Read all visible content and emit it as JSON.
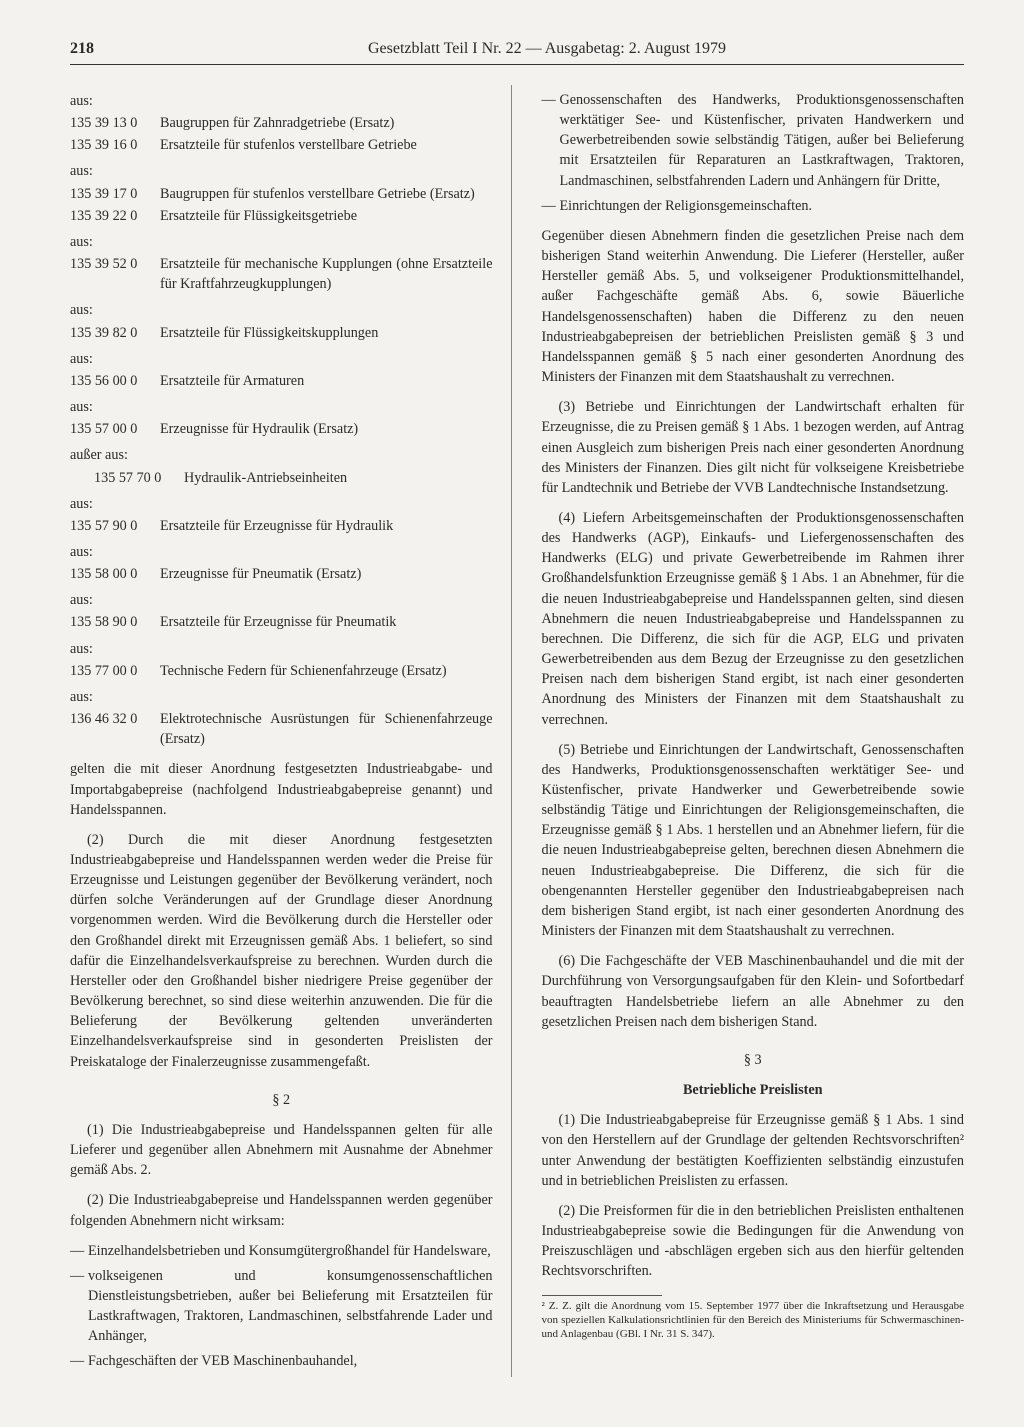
{
  "header": {
    "page_number": "218",
    "title": "Gesetzblatt Teil I Nr. 22 — Ausgabetag: 2. August 1979"
  },
  "left": {
    "items": [
      {
        "aus": "aus:"
      },
      {
        "code": "135 39 13 0",
        "desc": "Baugruppen für Zahnradgetriebe (Ersatz)"
      },
      {
        "code": "135 39 16 0",
        "desc": "Ersatzteile für stufenlos verstellbare Getriebe"
      },
      {
        "aus": "aus:"
      },
      {
        "code": "135 39 17 0",
        "desc": "Baugruppen für stufenlos verstellbare Getriebe (Ersatz)"
      },
      {
        "code": "135 39 22 0",
        "desc": "Ersatzteile für Flüssigkeitsgetriebe"
      },
      {
        "aus": "aus:"
      },
      {
        "code": "135 39 52 0",
        "desc": "Ersatzteile für mechanische Kupplungen (ohne Ersatzteile für Kraftfahrzeugkupplungen)"
      },
      {
        "aus": "aus:"
      },
      {
        "code": "135 39 82 0",
        "desc": "Ersatzteile für Flüssigkeitskupplungen"
      },
      {
        "aus": "aus:"
      },
      {
        "code": "135 56 00 0",
        "desc": "Ersatzteile für Armaturen"
      },
      {
        "aus": "aus:"
      },
      {
        "code": "135 57 00 0",
        "desc": "Erzeugnisse für Hydraulik (Ersatz)"
      },
      {
        "aus": "außer aus:"
      },
      {
        "indent": true,
        "code": "135 57 70 0",
        "desc": "Hydraulik-Antriebseinheiten"
      },
      {
        "aus": "aus:"
      },
      {
        "code": "135 57 90 0",
        "desc": "Ersatzteile für Erzeugnisse für Hydraulik"
      },
      {
        "aus": "aus:"
      },
      {
        "code": "135 58 00 0",
        "desc": "Erzeugnisse für Pneumatik (Ersatz)"
      },
      {
        "aus": "aus:"
      },
      {
        "code": "135 58 90 0",
        "desc": "Ersatzteile für Erzeugnisse für Pneumatik"
      },
      {
        "aus": "aus:"
      },
      {
        "code": "135 77 00 0",
        "desc": "Technische Federn für Schienenfahrzeuge (Ersatz)"
      },
      {
        "aus": "aus:"
      },
      {
        "code": "136 46 32 0",
        "desc": "Elektrotechnische Ausrüstungen für Schienenfahrzeuge (Ersatz)"
      }
    ],
    "para_after_list": "gelten die mit dieser Anordnung festgesetzten Industrieabgabe- und Importabgabepreise (nachfolgend Industrieabgabepreise genannt) und Handelsspannen.",
    "para2": "(2) Durch die mit dieser Anordnung festgesetzten Industrieabgabepreise und Handelsspannen werden weder die Preise für Erzeugnisse und Leistungen gegenüber der Bevölkerung verändert, noch dürfen solche Veränderungen auf der Grundlage dieser Anordnung vorgenommen werden. Wird die Bevölkerung durch die Hersteller oder den Großhandel direkt mit Erzeugnissen gemäß Abs. 1 beliefert, so sind dafür die Einzelhandelsverkaufspreise zu berechnen. Wurden durch die Hersteller oder den Großhandel bisher niedrigere Preise gegenüber der Bevölkerung berechnet, so sind diese weiterhin anzuwenden. Die für die Belieferung der Bevölkerung geltenden unveränderten Einzelhandelsverkaufspreise sind in gesonderten Preislisten der Preiskataloge der Finalerzeugnisse zusammengefaßt.",
    "section2": "§ 2",
    "s2p1": "(1) Die Industrieabgabepreise und Handelsspannen gelten für alle Lieferer und gegenüber allen Abnehmern mit Ausnahme der Abnehmer gemäß Abs. 2.",
    "s2p2": "(2) Die Industrieabgabepreise und Handelsspannen werden gegenüber folgenden Abnehmern nicht wirksam:",
    "s2_dashes": [
      "Einzelhandelsbetrieben und Konsumgütergroßhandel für Handelsware,",
      "volkseigenen und konsumgenossenschaftlichen Dienstleistungsbetrieben, außer bei Belieferung mit Ersatzteilen für Lastkraftwagen, Traktoren, Landmaschinen, selbstfahrende Lader und Anhänger,",
      "Fachgeschäften der VEB Maschinenbauhandel,"
    ]
  },
  "right": {
    "cont_dashes": [
      "Genossenschaften des Handwerks, Produktionsgenossenschaften werktätiger See- und Küstenfischer, privaten Handwerkern und Gewerbetreibenden sowie selbständig Tätigen, außer bei Belieferung mit Ersatzteilen für Reparaturen an Lastkraftwagen, Traktoren, Landmaschinen, selbstfahrenden Ladern und Anhängern für Dritte,",
      "Einrichtungen der Religionsgemeinschaften."
    ],
    "p_after": "Gegenüber diesen Abnehmern finden die gesetzlichen Preise nach dem bisherigen Stand weiterhin Anwendung. Die Lieferer (Hersteller, außer Hersteller gemäß Abs. 5, und volkseigener Produktionsmittelhandel, außer Fachgeschäfte gemäß Abs. 6, sowie Bäuerliche Handelsgenossenschaften) haben die Differenz zu den neuen Industrieabgabepreisen der betrieblichen Preislisten gemäß § 3 und Handelsspannen gemäß § 5 nach einer gesonderten Anordnung des Ministers der Finanzen mit dem Staatshaushalt zu verrechnen.",
    "p3": "(3) Betriebe und Einrichtungen der Landwirtschaft erhalten für Erzeugnisse, die zu Preisen gemäß § 1 Abs. 1 bezogen werden, auf Antrag einen Ausgleich zum bisherigen Preis nach einer gesonderten Anordnung des Ministers der Finanzen. Dies gilt nicht für volkseigene Kreisbetriebe für Landtechnik und Betriebe der VVB Landtechnische Instandsetzung.",
    "p4": "(4) Liefern Arbeitsgemeinschaften der Produktionsgenossenschaften des Handwerks (AGP), Einkaufs- und Liefergenossenschaften des Handwerks (ELG) und private Gewerbetreibende im Rahmen ihrer Großhandelsfunktion Erzeugnisse gemäß § 1 Abs. 1 an Abnehmer, für die die neuen Industrieabgabepreise und Handelsspannen gelten, sind diesen Abnehmern die neuen Industrieabgabepreise und Handelsspannen zu berechnen. Die Differenz, die sich für die AGP, ELG und privaten Gewerbetreibenden aus dem Bezug der Erzeugnisse zu den gesetzlichen Preisen nach dem bisherigen Stand ergibt, ist nach einer gesonderten Anordnung des Ministers der Finanzen mit dem Staatshaushalt zu verrechnen.",
    "p5": "(5) Betriebe und Einrichtungen der Landwirtschaft, Genossenschaften des Handwerks, Produktionsgenossenschaften werktätiger See- und Küstenfischer, private Handwerker und Gewerbetreibende sowie selbständig Tätige und Einrichtungen der Religionsgemeinschaften, die Erzeugnisse gemäß § 1 Abs. 1 herstellen und an Abnehmer liefern, für die die neuen Industrieabgabepreise gelten, berechnen diesen Abnehmern die neuen Industrieabgabepreise. Die Differenz, die sich für die obengenannten Hersteller gegenüber den Industrieabgabepreisen nach dem bisherigen Stand ergibt, ist nach einer gesonderten Anordnung des Ministers der Finanzen mit dem Staatshaushalt zu verrechnen.",
    "p6": "(6) Die Fachgeschäfte der VEB Maschinenbauhandel und die mit der Durchführung von Versorgungsaufgaben für den Klein- und Sofortbedarf beauftragten Handelsbetriebe liefern an alle Abnehmer zu den gesetzlichen Preisen nach dem bisherigen Stand.",
    "section3": "§ 3",
    "section3_title": "Betriebliche Preislisten",
    "s3p1": "(1) Die Industrieabgabepreise für Erzeugnisse gemäß § 1 Abs. 1 sind von den Herstellern auf der Grundlage der geltenden Rechtsvorschriften² unter Anwendung der bestätigten Koeffizienten selbständig einzustufen und in betrieblichen Preislisten zu erfassen.",
    "s3p2": "(2) Die Preisformen für die in den betrieblichen Preislisten enthaltenen Industrieabgabepreise sowie die Bedingungen für die Anwendung von Preiszuschlägen und -abschlägen ergeben sich aus den hierfür geltenden Rechtsvorschriften.",
    "footnote": "² Z. Z. gilt die Anordnung vom 15. September 1977 über die Inkraftsetzung und Herausgabe von speziellen Kalkulationsrichtlinien für den Bereich des Ministeriums für Schwermaschinen- und Anlagenbau (GBl. I Nr. 31 S. 347)."
  }
}
